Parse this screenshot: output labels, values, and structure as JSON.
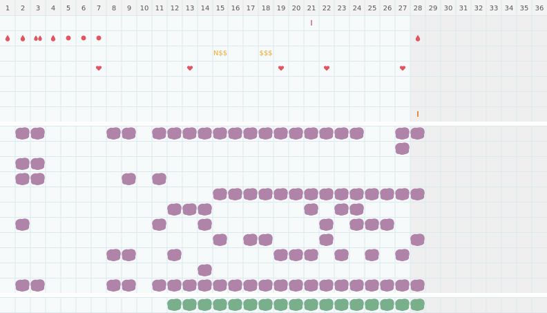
{
  "header": {
    "days": [
      1,
      2,
      3,
      4,
      5,
      6,
      7,
      8,
      9,
      10,
      11,
      12,
      13,
      14,
      15,
      16,
      17,
      18,
      19,
      20,
      21,
      22,
      23,
      24,
      25,
      26,
      27,
      28,
      29,
      30,
      31,
      32,
      33,
      34,
      35,
      36
    ]
  },
  "annotations": [
    {
      "label": "N$$"
    },
    {
      "label": "$$$"
    }
  ]
}
